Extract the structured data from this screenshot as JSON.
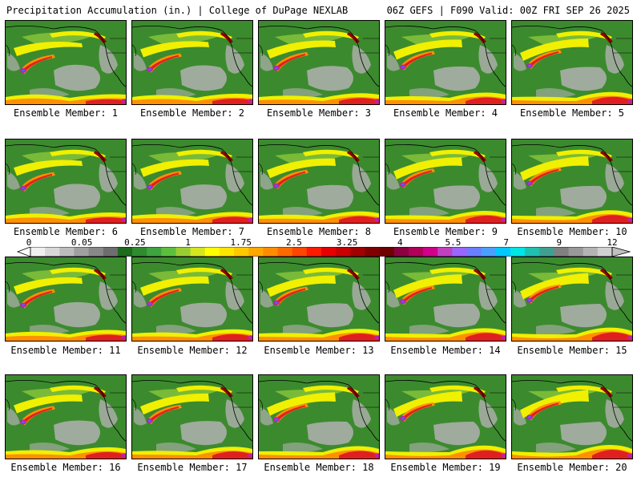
{
  "header": {
    "left": "Precipitation Accumulation (in.) | College of DuPage NEXLAB",
    "right": "06Z GEFS | F090 Valid: 00Z FRI SEP 26 2025"
  },
  "members": [
    {
      "label": "Ensemble Member: 1"
    },
    {
      "label": "Ensemble Member: 2"
    },
    {
      "label": "Ensemble Member: 3"
    },
    {
      "label": "Ensemble Member: 4"
    },
    {
      "label": "Ensemble Member: 5"
    },
    {
      "label": "Ensemble Member: 6"
    },
    {
      "label": "Ensemble Member: 7"
    },
    {
      "label": "Ensemble Member: 8"
    },
    {
      "label": "Ensemble Member: 9"
    },
    {
      "label": "Ensemble Member: 10"
    },
    {
      "label": "Ensemble Member: 11"
    },
    {
      "label": "Ensemble Member: 12"
    },
    {
      "label": "Ensemble Member: 13"
    },
    {
      "label": "Ensemble Member: 14"
    },
    {
      "label": "Ensemble Member: 15"
    },
    {
      "label": "Ensemble Member: 16"
    },
    {
      "label": "Ensemble Member: 17"
    },
    {
      "label": "Ensemble Member: 18"
    },
    {
      "label": "Ensemble Member: 19"
    },
    {
      "label": "Ensemble Member: 20"
    }
  ],
  "colorbar": {
    "tick_labels": [
      "0",
      "0.05",
      "0.25",
      "1",
      "1.75",
      "2.5",
      "3.25",
      "4",
      "5.5",
      "7",
      "9",
      "12"
    ],
    "colors": [
      "#f0f0f0",
      "#d8d8d8",
      "#bcbcbc",
      "#a0a0a0",
      "#888888",
      "#6e6e6e",
      "#1e6b1e",
      "#2e8b2e",
      "#3fa33f",
      "#5cbf3c",
      "#9acd32",
      "#d4e61e",
      "#ffff00",
      "#ffe400",
      "#ffc800",
      "#ffa800",
      "#ff8c00",
      "#ff6a00",
      "#ff4500",
      "#ff1a00",
      "#e60000",
      "#c80000",
      "#a00000",
      "#800000",
      "#6e0000",
      "#8b0040",
      "#b0005a",
      "#d0008a",
      "#c040c0",
      "#9966ff",
      "#6a7fff",
      "#4aa0ff",
      "#00c8ff",
      "#00e5e5",
      "#20c0b0",
      "#40a090",
      "#808080",
      "#999999",
      "#b4b4b4",
      "#d0d0d0"
    ]
  },
  "map_colors": {
    "ocean_light": "#3c8a2e",
    "dry_gray": "#b0b0b0",
    "light": "#7fc03a",
    "yellow": "#f0f000",
    "orange": "#ff9000",
    "red": "#e02020",
    "darkred": "#900000",
    "magenta": "#c020a0",
    "blue": "#5a5aff",
    "coast": "#000000"
  }
}
